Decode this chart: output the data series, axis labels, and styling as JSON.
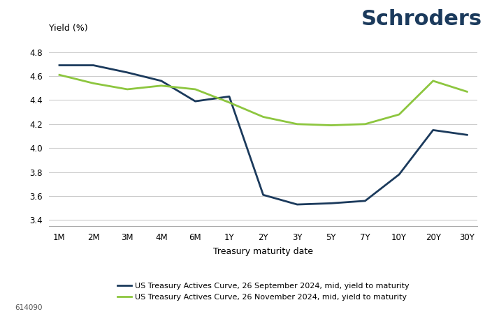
{
  "x_labels": [
    "1M",
    "2M",
    "3M",
    "4M",
    "6M",
    "1Y",
    "2Y",
    "3Y",
    "5Y",
    "7Y",
    "10Y",
    "20Y",
    "30Y"
  ],
  "x_positions": [
    0,
    1,
    2,
    3,
    4,
    5,
    6,
    7,
    8,
    9,
    10,
    11,
    12
  ],
  "sep_2024": [
    4.69,
    4.69,
    4.63,
    4.56,
    4.39,
    4.43,
    3.61,
    3.53,
    3.54,
    3.56,
    3.78,
    4.15,
    4.11
  ],
  "nov_2024": [
    4.61,
    4.54,
    4.49,
    4.52,
    4.49,
    4.38,
    4.26,
    4.2,
    4.19,
    4.2,
    4.28,
    4.56,
    4.47
  ],
  "sep_color": "#1b3a5c",
  "nov_color": "#8dc63f",
  "ylim": [
    3.35,
    4.92
  ],
  "yticks": [
    3.4,
    3.6,
    3.8,
    4.0,
    4.2,
    4.4,
    4.6,
    4.8
  ],
  "ylabel": "Yield (%)",
  "xlabel": "Treasury maturity date",
  "legend_sep": "US Treasury Actives Curve, 26 September 2024, mid, yield to maturity",
  "legend_nov": "US Treasury Actives Curve, 26 November 2024, mid, yield to maturity",
  "watermark": "614090",
  "title": "Schroders",
  "title_color": "#1b3a5c",
  "bg_color": "#ffffff",
  "grid_color": "#cccccc",
  "linewidth": 2.0,
  "tick_fontsize": 8.5,
  "label_fontsize": 9,
  "legend_fontsize": 8,
  "title_fontsize": 22
}
